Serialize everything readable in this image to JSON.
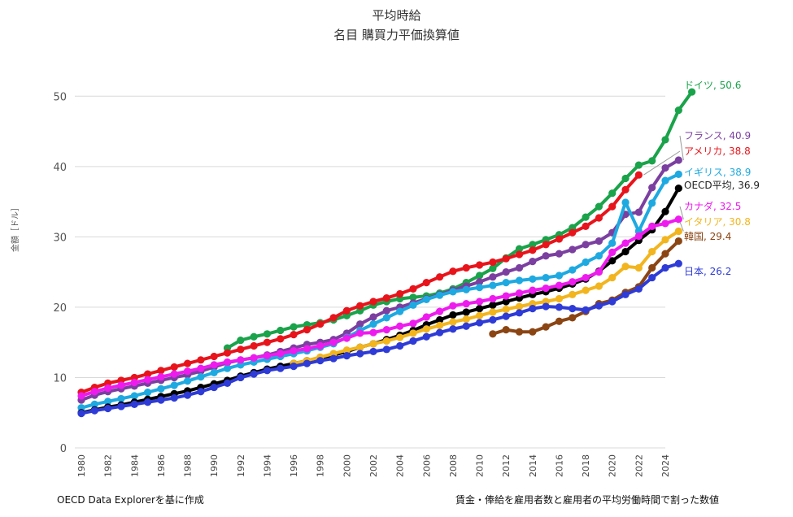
{
  "chart_data": {
    "type": "line",
    "title": "平均時給",
    "subtitle": "名目 購買力平価換算値",
    "xlabel": "",
    "ylabel": "金額［ドル］",
    "ylim": [
      0,
      55
    ],
    "yticks": [
      0,
      10,
      20,
      30,
      40,
      50
    ],
    "xticks": [
      1980,
      1982,
      1984,
      1986,
      1988,
      1990,
      1992,
      1994,
      1996,
      1998,
      2000,
      2002,
      2004,
      2006,
      2008,
      2010,
      2012,
      2014,
      2016,
      2018,
      2020,
      2022,
      2024
    ],
    "grid": true,
    "footer_left": "OECD Data Explorerを基に作成",
    "footer_right": "賃金・俸給を雇用者数と雇用者の平均労働時間で割った数値",
    "series": [
      {
        "name": "ドイツ",
        "label": "ドイツ, 50.6",
        "color": "#1aa34a",
        "start": 1991,
        "values": [
          14.2,
          15.3,
          15.8,
          16.2,
          16.7,
          17.2,
          17.5,
          17.8,
          18.2,
          18.8,
          19.5,
          20.3,
          20.8,
          21.2,
          21.4,
          21.6,
          22.0,
          22.6,
          23.5,
          24.5,
          25.5,
          27.0,
          28.3,
          28.9,
          29.6,
          30.3,
          31.3,
          32.8,
          34.3,
          36.2,
          38.3,
          40.2,
          40.8,
          43.8,
          48.0,
          50.6
        ]
      },
      {
        "name": "フランス",
        "label": "フランス, 40.9",
        "color": "#7b3fa0",
        "start": 1980,
        "values": [
          6.8,
          7.5,
          8.0,
          8.4,
          8.8,
          9.2,
          9.6,
          10.0,
          10.4,
          10.9,
          11.5,
          12.1,
          12.5,
          12.8,
          13.2,
          13.7,
          14.2,
          14.7,
          15.0,
          15.4,
          16.3,
          17.6,
          18.6,
          19.5,
          20.0,
          20.6,
          21.2,
          21.8,
          22.4,
          23.0,
          23.6,
          24.3,
          25.0,
          25.6,
          26.5,
          27.3,
          27.6,
          28.2,
          28.9,
          29.4,
          30.6,
          33.2,
          33.5,
          37.0,
          39.8,
          40.9
        ]
      },
      {
        "name": "アメリカ",
        "label": "アメリカ, 38.8",
        "color": "#e8141b",
        "start": 1980,
        "values": [
          7.9,
          8.6,
          9.2,
          9.6,
          10.0,
          10.5,
          11.0,
          11.5,
          12.0,
          12.5,
          13.0,
          13.5,
          14.0,
          14.5,
          15.0,
          15.5,
          16.1,
          16.8,
          17.6,
          18.5,
          19.5,
          20.2,
          20.8,
          21.3,
          21.9,
          22.6,
          23.5,
          24.3,
          25.1,
          25.6,
          26.0,
          26.4,
          26.9,
          27.5,
          28.1,
          28.9,
          29.7,
          30.6,
          31.5,
          32.7,
          34.3,
          36.7,
          38.8
        ]
      },
      {
        "name": "イギリス",
        "label": "イギリス, 38.9",
        "color": "#1ea9e1",
        "start": 1980,
        "values": [
          5.7,
          6.2,
          6.6,
          7.0,
          7.4,
          7.9,
          8.4,
          8.9,
          9.5,
          10.1,
          10.7,
          11.3,
          11.8,
          12.2,
          12.6,
          13.0,
          13.4,
          13.8,
          14.3,
          14.8,
          15.7,
          16.7,
          17.6,
          18.5,
          19.4,
          20.3,
          21.1,
          21.7,
          22.2,
          22.5,
          22.8,
          23.1,
          23.5,
          23.8,
          24.0,
          24.2,
          24.5,
          25.3,
          26.4,
          27.3,
          29.1,
          34.9,
          30.8,
          34.8,
          38.0,
          38.9
        ]
      },
      {
        "name": "OECD平均",
        "label": "OECD平均, 36.9",
        "color": "#000000",
        "start": 1980,
        "values": [
          5.0,
          5.4,
          5.8,
          6.1,
          6.5,
          6.9,
          7.3,
          7.7,
          8.1,
          8.6,
          9.1,
          9.6,
          10.2,
          10.7,
          11.2,
          11.6,
          12.0,
          12.4,
          12.8,
          13.2,
          13.7,
          14.3,
          14.8,
          15.4,
          16.0,
          16.7,
          17.5,
          18.2,
          18.9,
          19.3,
          19.8,
          20.3,
          20.8,
          21.3,
          21.8,
          22.2,
          22.7,
          23.3,
          24.0,
          25.1,
          26.6,
          27.9,
          29.5,
          31.0,
          33.6,
          36.9
        ]
      },
      {
        "name": "カナダ",
        "label": "カナダ, 32.5",
        "color": "#ee1bee",
        "start": 1980,
        "values": [
          7.4,
          8.0,
          8.5,
          8.9,
          9.3,
          9.7,
          10.1,
          10.5,
          10.9,
          11.3,
          11.8,
          12.2,
          12.5,
          12.8,
          13.1,
          13.4,
          13.8,
          14.1,
          14.5,
          15.0,
          15.6,
          16.3,
          16.4,
          16.8,
          17.3,
          17.7,
          18.6,
          19.4,
          20.2,
          20.5,
          20.8,
          21.2,
          21.6,
          22.0,
          22.4,
          22.7,
          23.1,
          23.6,
          24.2,
          25.0,
          27.8,
          29.1,
          30.1,
          31.5,
          31.9,
          32.5
        ]
      },
      {
        "name": "イタリア",
        "label": "イタリア, 30.8",
        "color": "#f2b51e",
        "start": 1996,
        "values": [
          12.0,
          12.4,
          12.9,
          13.4,
          13.9,
          14.3,
          14.8,
          15.2,
          15.7,
          16.3,
          16.9,
          17.4,
          17.9,
          18.3,
          18.8,
          19.3,
          19.7,
          20.1,
          20.5,
          20.8,
          21.2,
          21.8,
          22.4,
          23.0,
          24.2,
          25.8,
          25.6,
          27.9,
          29.6,
          30.8
        ]
      },
      {
        "name": "韓国",
        "label": "韓国, 29.4",
        "color": "#8b4513",
        "start": 2011,
        "values": [
          16.2,
          16.8,
          16.5,
          16.5,
          17.2,
          18.0,
          18.5,
          19.4,
          20.5,
          21.0,
          22.1,
          22.9,
          25.6,
          27.6,
          29.4
        ]
      },
      {
        "name": "日本",
        "label": "日本, 26.2",
        "color": "#2e3bd6",
        "start": 1980,
        "values": [
          4.9,
          5.3,
          5.6,
          5.9,
          6.2,
          6.5,
          6.8,
          7.1,
          7.5,
          8.0,
          8.6,
          9.2,
          10.0,
          10.5,
          11.0,
          11.3,
          11.6,
          12.0,
          12.4,
          12.7,
          13.1,
          13.4,
          13.7,
          14.0,
          14.5,
          15.2,
          15.8,
          16.4,
          16.9,
          17.3,
          17.8,
          18.2,
          18.7,
          19.2,
          19.8,
          20.1,
          20.0,
          19.8,
          19.6,
          20.2,
          20.8,
          21.8,
          22.6,
          24.2,
          25.6,
          26.2
        ]
      }
    ]
  }
}
